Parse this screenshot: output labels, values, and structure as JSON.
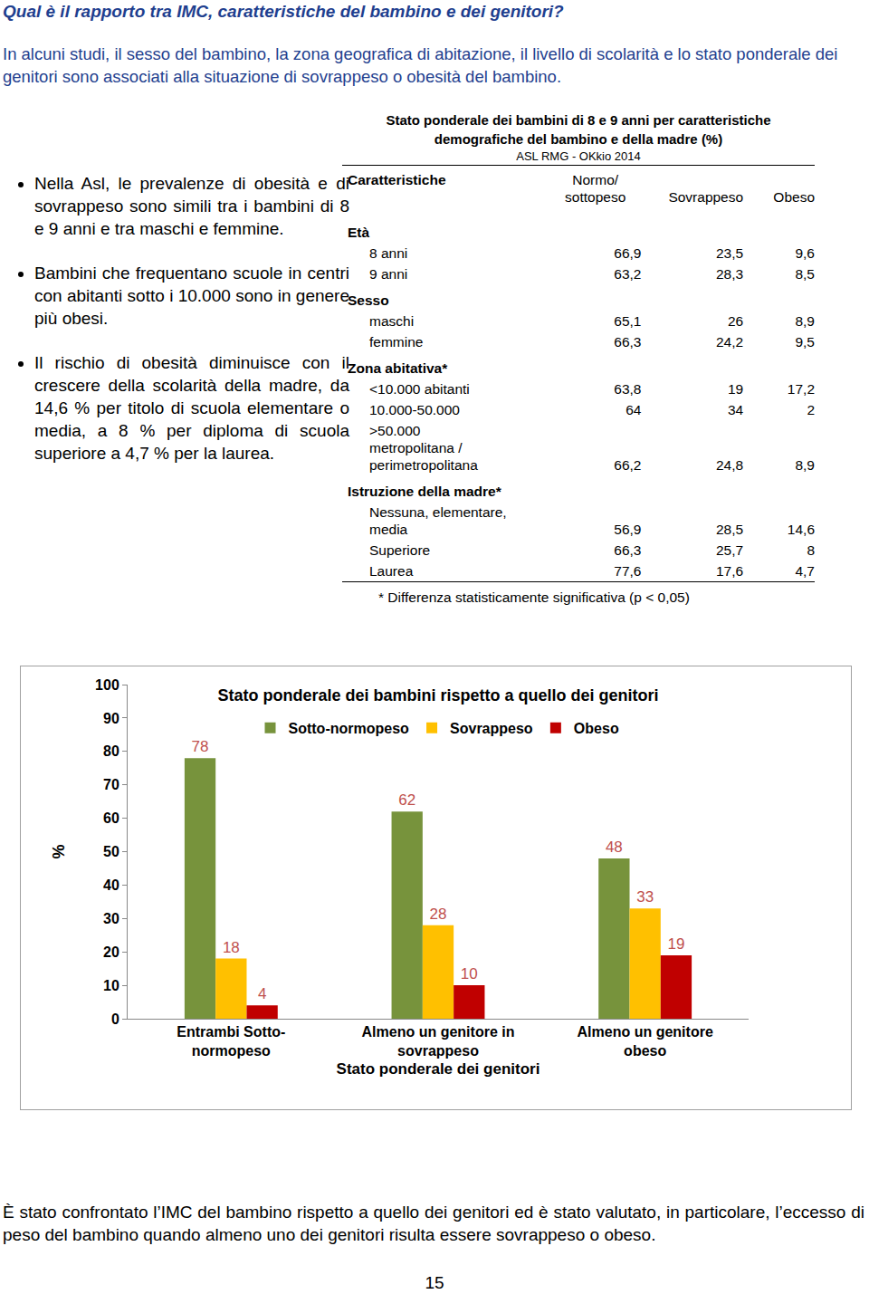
{
  "document": {
    "title": "Qual è il rapporto tra IMC, caratteristiche del bambino e dei genitori?",
    "intro": "In alcuni studi, il sesso del bambino, la zona geografica di abitazione, il livello di scolarità e lo stato ponderale dei genitori sono associati alla situazione di sovrappeso o obesità del bambino.",
    "bullets": [
      "Nella Asl, le prevalenze di obesità e di sovrappeso sono simili tra i bambini di 8 e 9 anni e tra maschi e femmine.",
      "Bambini che frequentano scuole in centri con abitanti sotto i 10.000 sono in genere più obesi.",
      "Il rischio di obesità diminuisce con il crescere della scolarità della madre, da 14,6 % per titolo di scuola elementare o media, a 8 % per diploma di scuola superiore a 4,7 % per la laurea."
    ],
    "table": {
      "title": "Stato ponderale dei bambini di 8 e 9 anni per caratteristiche demografiche del bambino e della madre (%)",
      "subtitle": "ASL RMG - OKkio 2014",
      "header": [
        "Caratteristiche",
        "Normo/\nsottopeso",
        "Sovrappeso",
        "Obeso"
      ],
      "groups": [
        {
          "label": "Età",
          "rows": [
            [
              "8 anni",
              "66,9",
              "23,5",
              "9,6"
            ],
            [
              "9 anni",
              "63,2",
              "28,3",
              "8,5"
            ]
          ]
        },
        {
          "label": "Sesso",
          "rows": [
            [
              "maschi",
              "65,1",
              "26",
              "8,9"
            ],
            [
              "femmine",
              "66,3",
              "24,2",
              "9,5"
            ]
          ]
        },
        {
          "label": "Zona abitativa*",
          "rows": [
            [
              "<10.000 abitanti",
              "63,8",
              "19",
              "17,2"
            ],
            [
              "10.000-50.000",
              "64",
              "34",
              "2"
            ],
            [
              ">50.000\nmetropolitana /\nperimetropolitana",
              "66,2",
              "24,8",
              "8,9"
            ]
          ]
        },
        {
          "label": "Istruzione della madre*",
          "rows": [
            [
              "Nessuna, elementare,\nmedia",
              "56,9",
              "28,5",
              "14,6"
            ],
            [
              "Superiore",
              "66,3",
              "25,7",
              "8"
            ],
            [
              "Laurea",
              "77,6",
              "17,6",
              "4,7"
            ]
          ]
        }
      ],
      "footnote": "* Differenza statisticamente significativa (p < 0,05)"
    },
    "caption": "È stato confrontato l’IMC del bambino rispetto a quello dei genitori ed è stato valutato, in particolare, l’eccesso di peso del bambino quando almeno uno dei genitori risulta essere sovrappeso o obeso.",
    "page_number": "15"
  },
  "chart_data": {
    "type": "bar",
    "title": "Stato ponderale dei bambini rispetto a quello dei genitori",
    "x_label": "Stato ponderale dei genitori",
    "y_label": "%",
    "categories": [
      "Entrambi Sotto-\nnormopeso",
      "Almeno un genitore in\nsovrappeso",
      "Almeno un genitore\nobeso"
    ],
    "series": [
      {
        "name": "Sotto-normopeso",
        "color": "#77933C",
        "values": [
          78,
          62,
          48
        ]
      },
      {
        "name": "Sovrappeso",
        "color": "#FFC000",
        "values": [
          18,
          28,
          33
        ]
      },
      {
        "name": "Obeso",
        "color": "#C00000",
        "values": [
          4,
          10,
          19
        ]
      }
    ],
    "ylim": [
      0,
      100
    ],
    "yticks": [
      0,
      10,
      20,
      30,
      40,
      50,
      60,
      70,
      80,
      90,
      100
    ],
    "grid": false,
    "legend": "top",
    "data_labels": true
  }
}
